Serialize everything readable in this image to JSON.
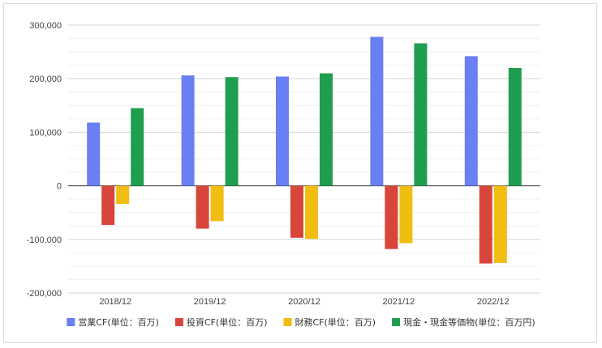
{
  "chart_data": {
    "type": "bar",
    "title": "",
    "xlabel": "",
    "ylabel": "",
    "categories": [
      "2018/12",
      "2019/12",
      "2020/12",
      "2021/12",
      "2022/12"
    ],
    "ylim": [
      -200000,
      300000
    ],
    "yticks": [
      -200000,
      -100000,
      0,
      100000,
      200000,
      300000
    ],
    "ytick_labels": [
      "-200,000",
      "-100,000",
      "0",
      "100,000",
      "200,000",
      "300,000"
    ],
    "grid": true,
    "legend_position": "bottom",
    "series": [
      {
        "name": "営業CF(単位：百万)",
        "color": "#6a7ff2",
        "values": [
          118000,
          206000,
          204000,
          278000,
          242000
        ]
      },
      {
        "name": "投資CF(単位：百万)",
        "color": "#d8453a",
        "values": [
          -73000,
          -80000,
          -97000,
          -118000,
          -145000
        ]
      },
      {
        "name": "財務CF(単位：百万)",
        "color": "#f0bd12",
        "values": [
          -34000,
          -66000,
          -99000,
          -107000,
          -144000
        ]
      },
      {
        "name": "現金・現金等価物(単位：百万円)",
        "color": "#1f9e4f",
        "values": [
          145000,
          203000,
          210000,
          266000,
          220000
        ]
      }
    ]
  }
}
